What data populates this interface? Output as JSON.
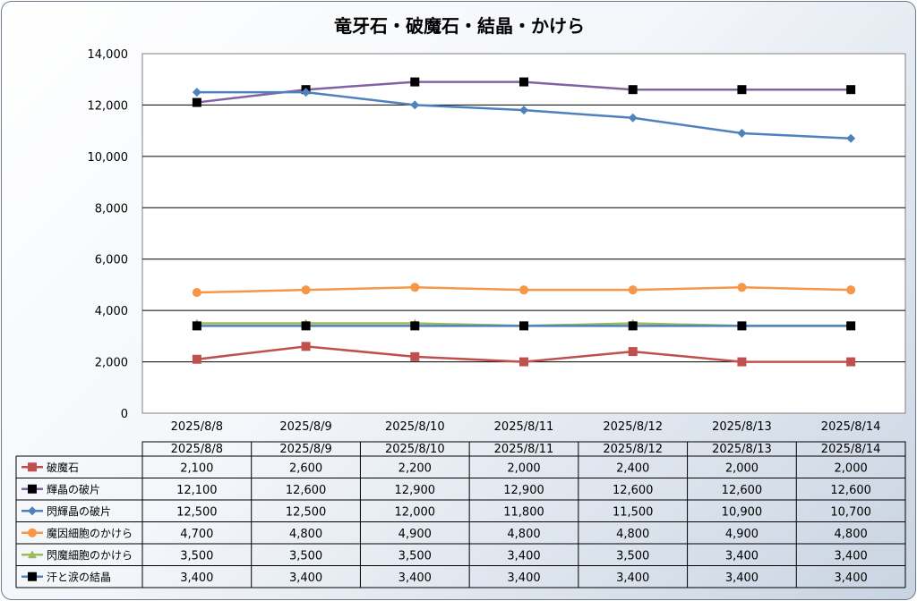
{
  "chart_data": {
    "type": "line",
    "title": "竜牙石・破魔石・結晶・かけら",
    "xlabel": "",
    "ylabel": "",
    "categories": [
      "2025/8/8",
      "2025/8/9",
      "2025/8/10",
      "2025/8/11",
      "2025/8/12",
      "2025/8/13",
      "2025/8/14"
    ],
    "ylim": [
      0,
      14000
    ],
    "yticks": [
      0,
      2000,
      4000,
      6000,
      8000,
      10000,
      12000,
      14000
    ],
    "ytick_labels": [
      "0",
      "2,000",
      "4,000",
      "6,000",
      "8,000",
      "10,000",
      "12,000",
      "14,000"
    ],
    "grid": true,
    "legend": "data-table",
    "series": [
      {
        "name": "破魔石",
        "color": "#c0504d",
        "marker": "square",
        "values": [
          2100,
          2600,
          2200,
          2000,
          2400,
          2000,
          2000
        ],
        "labels": [
          "2,100",
          "2,600",
          "2,200",
          "2,000",
          "2,400",
          "2,000",
          "2,000"
        ]
      },
      {
        "name": "輝晶の破片",
        "color": "#8064a2",
        "marker": "square-black",
        "values": [
          12100,
          12600,
          12900,
          12900,
          12600,
          12600,
          12600
        ],
        "labels": [
          "12,100",
          "12,600",
          "12,900",
          "12,900",
          "12,600",
          "12,600",
          "12,600"
        ]
      },
      {
        "name": "閃輝晶の破片",
        "color": "#4f81bd",
        "marker": "diamond",
        "values": [
          12500,
          12500,
          12000,
          11800,
          11500,
          10900,
          10700
        ],
        "labels": [
          "12,500",
          "12,500",
          "12,000",
          "11,800",
          "11,500",
          "10,900",
          "10,700"
        ]
      },
      {
        "name": "魔因細胞のかけら",
        "color": "#f79646",
        "marker": "circle",
        "values": [
          4700,
          4800,
          4900,
          4800,
          4800,
          4900,
          4800
        ],
        "labels": [
          "4,700",
          "4,800",
          "4,900",
          "4,800",
          "4,800",
          "4,900",
          "4,800"
        ]
      },
      {
        "name": "閃魔細胞のかけら",
        "color": "#9bbb59",
        "marker": "triangle",
        "values": [
          3500,
          3500,
          3500,
          3400,
          3500,
          3400,
          3400
        ],
        "labels": [
          "3,500",
          "3,500",
          "3,500",
          "3,400",
          "3,500",
          "3,400",
          "3,400"
        ]
      },
      {
        "name": "汗と涙の結晶",
        "color": "#4f81bd",
        "marker": "square-black",
        "values": [
          3400,
          3400,
          3400,
          3400,
          3400,
          3400,
          3400
        ],
        "labels": [
          "3,400",
          "3,400",
          "3,400",
          "3,400",
          "3,400",
          "3,400",
          "3,400"
        ]
      }
    ]
  }
}
